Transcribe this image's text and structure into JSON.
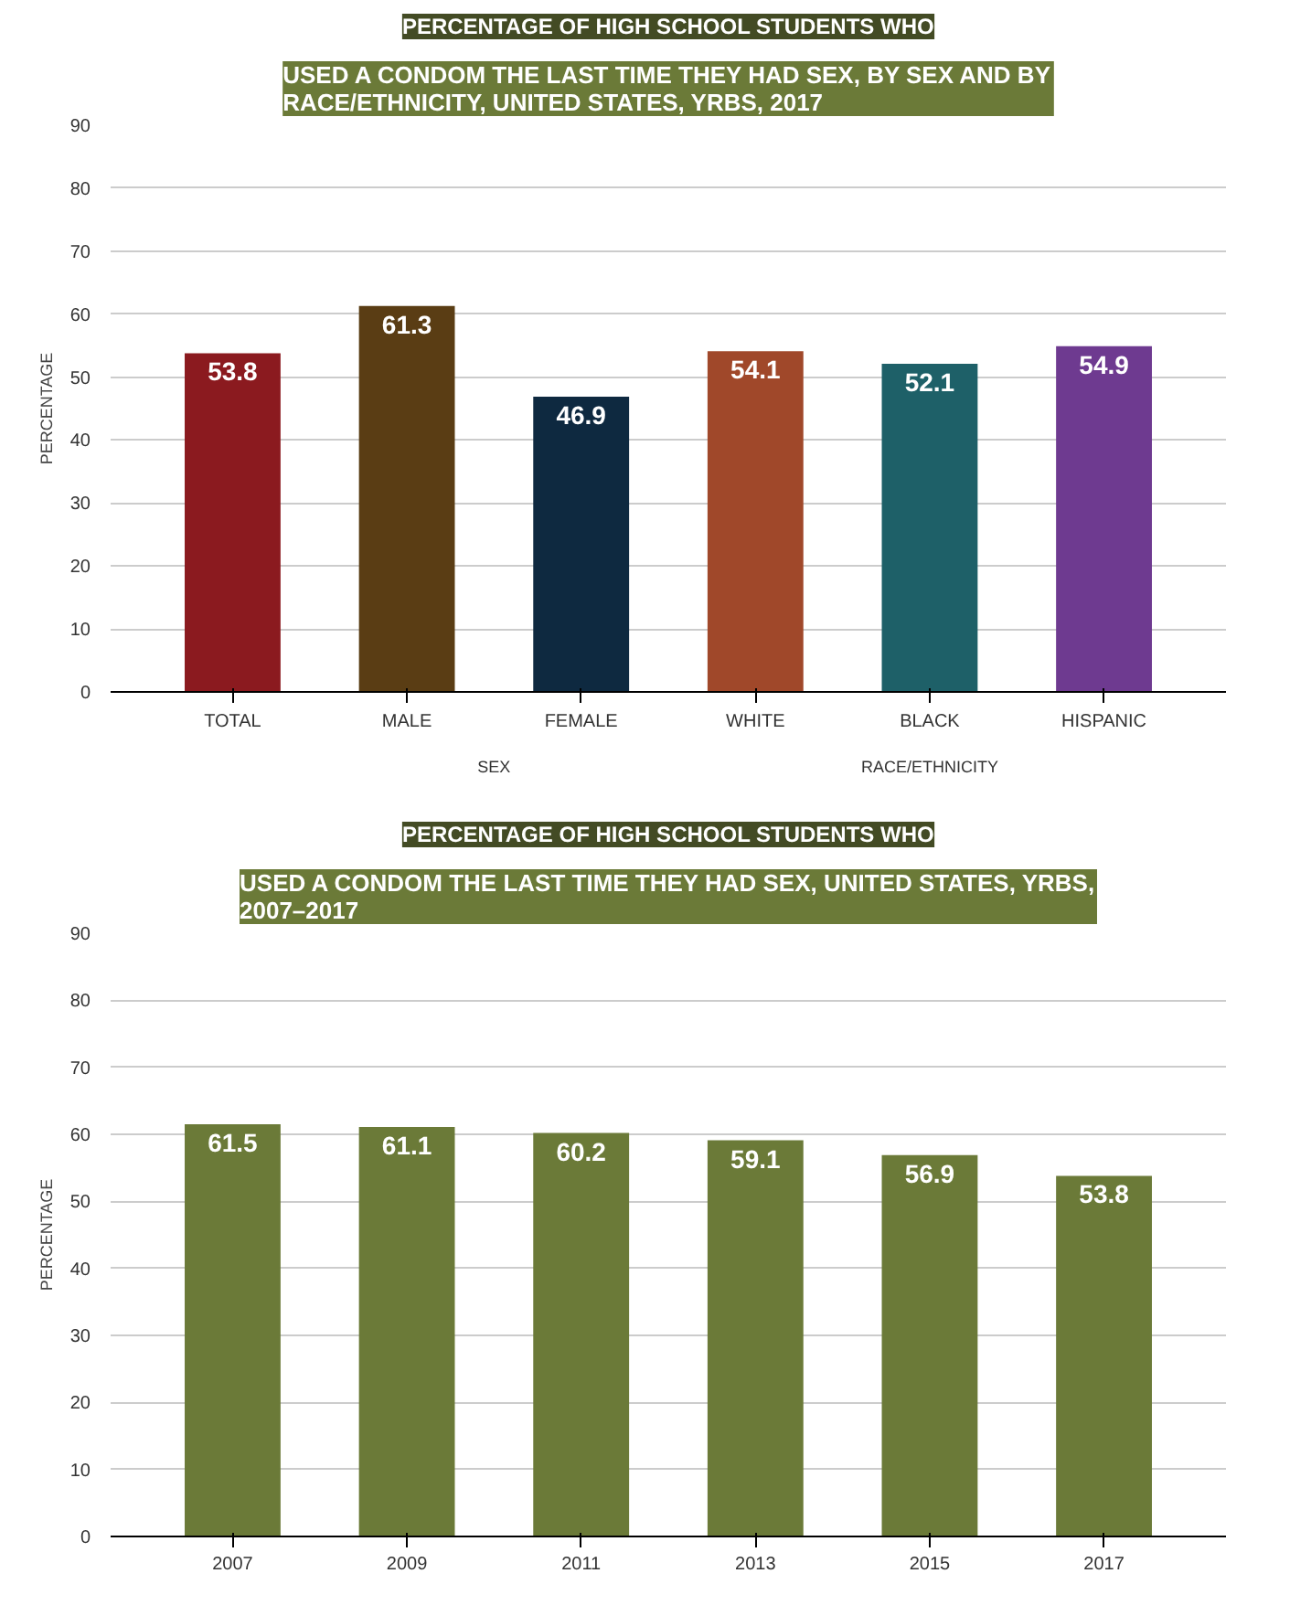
{
  "chart_data": [
    {
      "type": "bar",
      "title": "PERCENTAGE OF HIGH SCHOOL STUDENTS WHO",
      "subtitle": "USED A CONDOM THE LAST TIME THEY HAD SEX, BY SEX AND BY RACE/ETHNICITY, UNITED STATES, YRBS, 2017",
      "ylabel": "PERCENTAGE",
      "categories": [
        "TOTAL",
        "MALE",
        "FEMALE",
        "WHITE",
        "BLACK",
        "HISPANIC"
      ],
      "values": [
        53.8,
        61.3,
        46.9,
        54.1,
        52.1,
        54.9
      ],
      "colors": [
        "#8b1a1f",
        "#5a3d14",
        "#0e2940",
        "#a0482a",
        "#1e6068",
        "#6e3a90"
      ],
      "ylim": [
        0,
        90
      ],
      "yticks": [
        0,
        10,
        20,
        30,
        40,
        50,
        60,
        70,
        80,
        90
      ],
      "grid": "y",
      "data_labels": true,
      "annotations": [
        "SEX",
        "RACE/ETHNICITY"
      ]
    },
    {
      "type": "bar",
      "title": "PERCENTAGE OF HIGH SCHOOL STUDENTS WHO",
      "subtitle": "USED A CONDOM THE LAST TIME THEY HAD SEX, UNITED STATES, YRBS, 2007–2017",
      "ylabel": "PERCENTAGE",
      "categories": [
        "2007",
        "2009",
        "2011",
        "2013",
        "2015",
        "2017"
      ],
      "values": [
        61.5,
        61.1,
        60.2,
        59.1,
        56.9,
        53.8
      ],
      "color": "#6b7a38",
      "ylim": [
        0,
        90
      ],
      "yticks": [
        0,
        10,
        20,
        30,
        40,
        50,
        60,
        70,
        80,
        90
      ],
      "grid": "y",
      "data_labels": true
    }
  ]
}
